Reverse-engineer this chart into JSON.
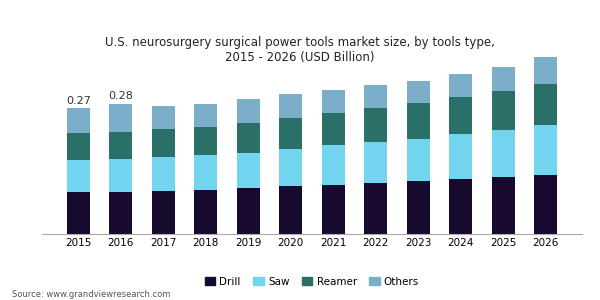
{
  "years": [
    "2015",
    "2016",
    "2017",
    "2018",
    "2019",
    "2020",
    "2021",
    "2022",
    "2023",
    "2024",
    "2025",
    "2026"
  ],
  "drill": [
    0.09,
    0.09,
    0.093,
    0.095,
    0.098,
    0.103,
    0.106,
    0.11,
    0.114,
    0.118,
    0.122,
    0.127
  ],
  "saw": [
    0.07,
    0.072,
    0.072,
    0.074,
    0.076,
    0.08,
    0.085,
    0.088,
    0.09,
    0.096,
    0.102,
    0.108
  ],
  "reamer": [
    0.058,
    0.058,
    0.06,
    0.062,
    0.064,
    0.067,
    0.07,
    0.072,
    0.077,
    0.08,
    0.083,
    0.088
  ],
  "others": [
    0.052,
    0.06,
    0.05,
    0.049,
    0.052,
    0.05,
    0.049,
    0.05,
    0.049,
    0.051,
    0.053,
    0.057
  ],
  "annotations": {
    "2015": "0.27",
    "2016": "0.28"
  },
  "colors": {
    "drill": "#180a2e",
    "saw": "#72d4ef",
    "reamer": "#2a7068",
    "others": "#7baec8"
  },
  "title": "U.S. neurosurgery surgical power tools market size, by tools type,\n2015 - 2026 (USD Billion)",
  "title_color": "#222222",
  "title_fontsize": 8.5,
  "ylim": [
    0,
    0.4
  ],
  "background_color": "#ffffff",
  "source_text": "Source: www.grandviewresearch.com",
  "bar_width": 0.55,
  "top_bar_color": "#6b3fa0"
}
